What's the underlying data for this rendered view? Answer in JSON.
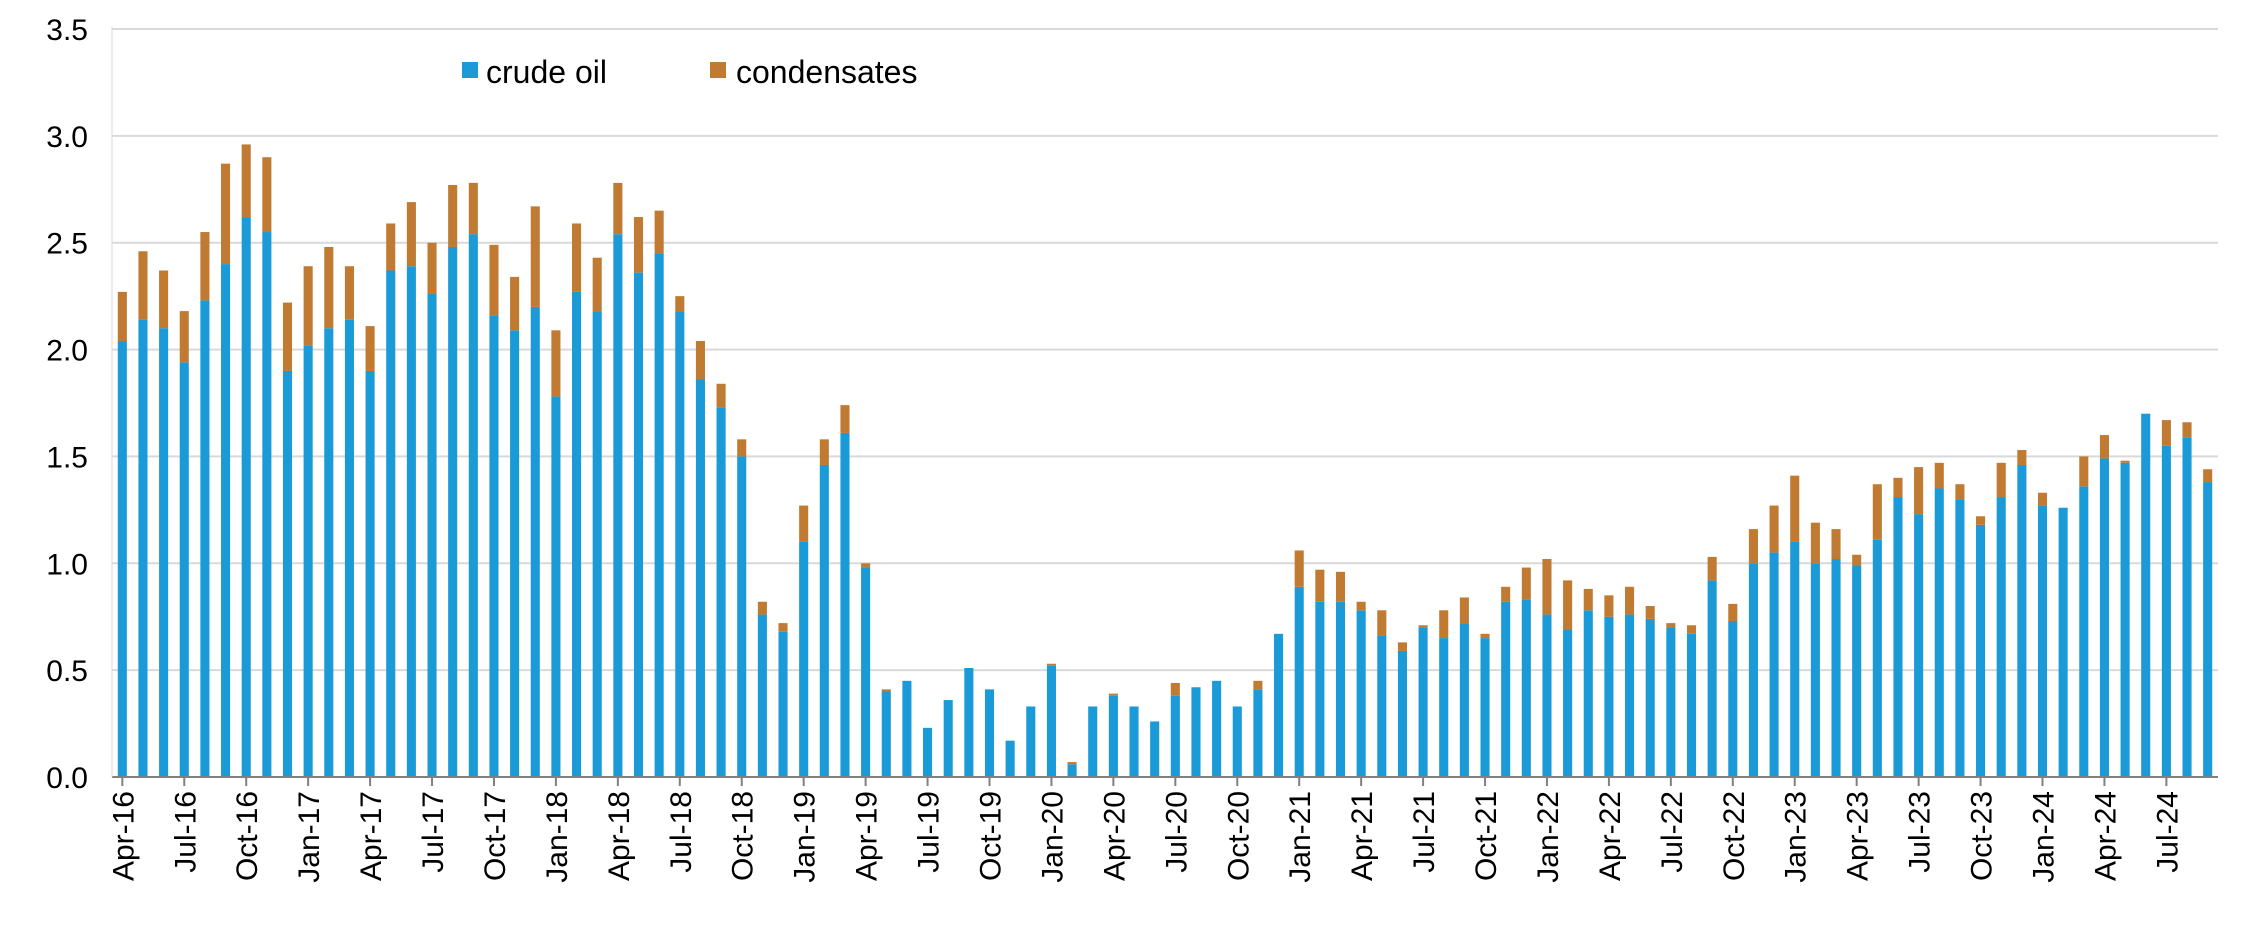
{
  "chart_data": {
    "type": "bar",
    "stacked": true,
    "title": "",
    "xlabel": "",
    "ylabel": "",
    "ylim": [
      0,
      3.5
    ],
    "yticks": [
      "0.0",
      "0.5",
      "1.0",
      "1.5",
      "2.0",
      "2.5",
      "3.0",
      "3.5"
    ],
    "grid": "horizontal",
    "legend": "top-left",
    "colors": {
      "crude_oil": "#1a9bd7",
      "condensates": "#c07a32",
      "grid": "#d9d9d9"
    },
    "x_tick_labels": [
      "Apr-16",
      "Jul-16",
      "Oct-16",
      "Jan-17",
      "Apr-17",
      "Jul-17",
      "Oct-17",
      "Jan-18",
      "Apr-18",
      "Jul-18",
      "Oct-18",
      "Jan-19",
      "Apr-19",
      "Jul-19",
      "Oct-19",
      "Jan-20",
      "Apr-20",
      "Jul-20",
      "Oct-20",
      "Jan-21",
      "Apr-21",
      "Jul-21",
      "Oct-21",
      "Jan-22",
      "Apr-22",
      "Jul-22",
      "Oct-22",
      "Jan-23",
      "Apr-23",
      "Jul-23",
      "Oct-23",
      "Jan-24",
      "Apr-24",
      "Jul-24"
    ],
    "series": [
      {
        "name": "crude oil",
        "values": [
          2.04,
          2.14,
          2.1,
          1.94,
          2.23,
          2.4,
          2.62,
          2.55,
          1.9,
          2.02,
          2.1,
          2.14,
          1.9,
          2.37,
          2.39,
          2.26,
          2.48,
          2.54,
          2.16,
          2.09,
          2.2,
          1.78,
          2.27,
          2.18,
          2.54,
          2.36,
          2.45,
          2.18,
          1.86,
          1.73,
          1.5,
          0.76,
          0.68,
          1.1,
          1.46,
          1.61,
          0.98,
          0.4,
          0.45,
          0.23,
          0.36,
          0.51,
          0.41,
          0.17,
          0.33,
          0.52,
          0.06,
          0.33,
          0.38,
          0.33,
          0.26,
          0.38,
          0.42,
          0.45,
          0.33,
          0.41,
          0.67,
          0.89,
          0.82,
          0.82,
          0.78,
          0.66,
          0.59,
          0.7,
          0.65,
          0.72,
          0.65,
          0.82,
          0.83,
          0.76,
          0.69,
          0.78,
          0.75,
          0.76,
          0.74,
          0.7,
          0.67,
          0.92,
          0.73,
          1.0,
          1.05,
          1.1,
          1.0,
          1.02,
          0.99,
          1.11,
          1.31,
          1.23,
          1.35,
          1.3,
          1.18,
          1.31,
          1.46,
          1.27,
          1.26,
          1.36,
          1.49,
          1.47,
          1.7,
          1.55,
          1.59,
          1.38
        ]
      },
      {
        "name": "condensates",
        "values": [
          0.23,
          0.32,
          0.27,
          0.24,
          0.32,
          0.47,
          0.34,
          0.35,
          0.32,
          0.37,
          0.38,
          0.25,
          0.21,
          0.22,
          0.3,
          0.24,
          0.29,
          0.24,
          0.33,
          0.25,
          0.47,
          0.31,
          0.32,
          0.25,
          0.24,
          0.26,
          0.2,
          0.07,
          0.18,
          0.11,
          0.08,
          0.06,
          0.04,
          0.17,
          0.12,
          0.13,
          0.02,
          0.01,
          0.0,
          0.0,
          0.0,
          0.0,
          0.0,
          0.0,
          0.0,
          0.01,
          0.01,
          0.0,
          0.01,
          0.0,
          0.0,
          0.06,
          0.0,
          0.0,
          0.0,
          0.04,
          0.0,
          0.17,
          0.15,
          0.14,
          0.04,
          0.12,
          0.04,
          0.01,
          0.13,
          0.12,
          0.02,
          0.07,
          0.15,
          0.26,
          0.23,
          0.1,
          0.1,
          0.13,
          0.06,
          0.02,
          0.04,
          0.11,
          0.08,
          0.16,
          0.22,
          0.31,
          0.19,
          0.14,
          0.05,
          0.26,
          0.09,
          0.22,
          0.12,
          0.07,
          0.04,
          0.16,
          0.07,
          0.06,
          0.0,
          0.14,
          0.11,
          0.01,
          0.0,
          0.12,
          0.07,
          0.06
        ]
      }
    ]
  }
}
